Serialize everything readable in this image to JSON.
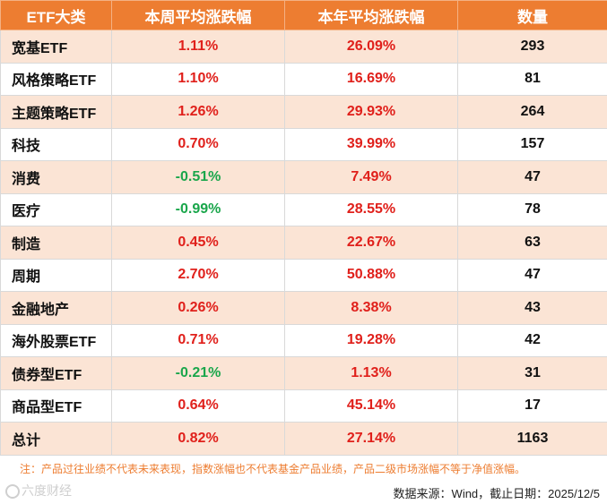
{
  "table": {
    "headers": [
      "ETF大类",
      "本周平均涨跌幅",
      "本年平均涨跌幅",
      "数量"
    ],
    "rows": [
      {
        "category": "宽基ETF",
        "weekly": "1.11%",
        "ytd": "26.09%",
        "count": "293"
      },
      {
        "category": "风格策略ETF",
        "weekly": "1.10%",
        "ytd": "16.69%",
        "count": "81"
      },
      {
        "category": "主题策略ETF",
        "weekly": "1.26%",
        "ytd": "29.93%",
        "count": "264"
      },
      {
        "category": "科技",
        "weekly": "0.70%",
        "ytd": "39.99%",
        "count": "157"
      },
      {
        "category": "消费",
        "weekly": "-0.51%",
        "ytd": "7.49%",
        "count": "47"
      },
      {
        "category": "医疗",
        "weekly": "-0.99%",
        "ytd": "28.55%",
        "count": "78"
      },
      {
        "category": "制造",
        "weekly": "0.45%",
        "ytd": "22.67%",
        "count": "63"
      },
      {
        "category": "周期",
        "weekly": "2.70%",
        "ytd": "50.88%",
        "count": "47"
      },
      {
        "category": "金融地产",
        "weekly": "0.26%",
        "ytd": "8.38%",
        "count": "43"
      },
      {
        "category": "海外股票ETF",
        "weekly": "0.71%",
        "ytd": "19.28%",
        "count": "42"
      },
      {
        "category": "债券型ETF",
        "weekly": "-0.21%",
        "ytd": "1.13%",
        "count": "31"
      },
      {
        "category": "商品型ETF",
        "weekly": "0.64%",
        "ytd": "45.14%",
        "count": "17"
      },
      {
        "category": "总计",
        "weekly": "0.82%",
        "ytd": "27.14%",
        "count": "1163"
      }
    ]
  },
  "colors": {
    "header_bg": "#ed7d31",
    "stripe_bg": "#fbe4d5",
    "positive": "#e0201b",
    "negative": "#1aa64b"
  },
  "footer": {
    "note": "注：产品过往业绩不代表未来表现，指数涨幅也不代表基金产品业绩，产品二级市场涨幅不等于净值涨幅。",
    "source": "数据来源：Wind，截止日期：2025/12/5",
    "watermark": "六度财经"
  }
}
